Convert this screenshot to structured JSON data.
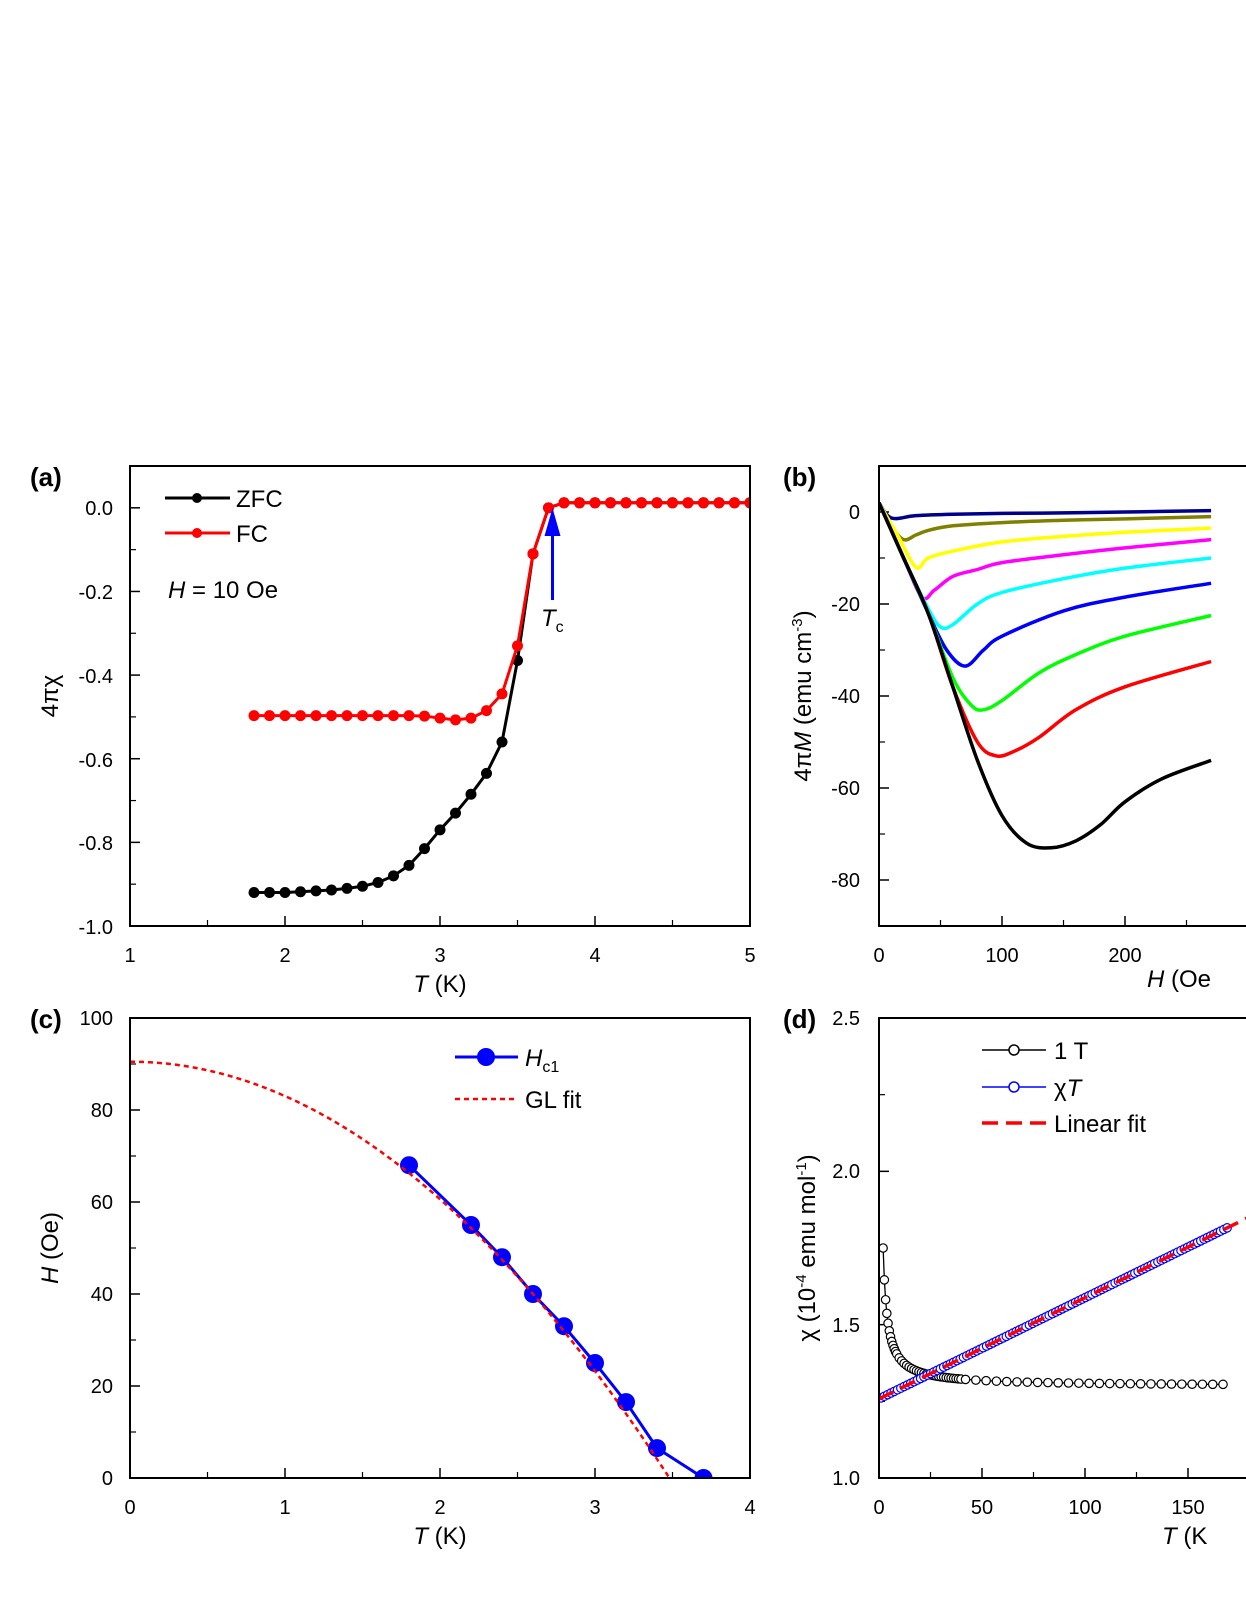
{
  "chart_data": [
    {
      "panel_label": "(a)",
      "type": "line",
      "xlabel_italic": "T",
      "xlabel_rest": " (K)",
      "ylabel": "4πχ",
      "xlim": [
        1,
        5
      ],
      "ylim": [
        -1.0,
        0.1
      ],
      "x_ticks": [
        "1",
        "2",
        "3",
        "4",
        "5"
      ],
      "y_ticks": [
        "0.0",
        "-0.2",
        "-0.4",
        "-0.6",
        "-0.8",
        "-1.0"
      ],
      "x_tick_values": [
        1,
        2,
        3,
        4,
        5
      ],
      "y_tick_values": [
        0.0,
        -0.2,
        -0.4,
        -0.6,
        -0.8,
        -1.0
      ],
      "annotation_field_italic": "H",
      "annotation_field_rest": " = 10 Oe",
      "annotation_tc_main": "T",
      "annotation_tc_sub": "c",
      "tc_x": 3.7,
      "series": [
        {
          "name": "ZFC",
          "color": "#000000",
          "x": [
            1.8,
            1.9,
            2.0,
            2.1,
            2.2,
            2.3,
            2.4,
            2.5,
            2.6,
            2.7,
            2.8,
            2.9,
            3.0,
            3.1,
            3.2,
            3.3,
            3.4,
            3.5,
            3.6,
            3.7,
            3.8,
            3.9,
            4.0,
            4.1,
            4.2,
            4.3,
            4.4,
            4.5,
            4.6,
            4.7,
            4.8,
            4.9,
            5.0
          ],
          "y": [
            -0.92,
            -0.92,
            -0.92,
            -0.918,
            -0.916,
            -0.914,
            -0.91,
            -0.905,
            -0.896,
            -0.88,
            -0.855,
            -0.815,
            -0.77,
            -0.73,
            -0.685,
            -0.635,
            -0.56,
            -0.365,
            -0.11,
            0.0,
            0.012,
            0.012,
            0.012,
            0.012,
            0.012,
            0.012,
            0.012,
            0.012,
            0.012,
            0.012,
            0.012,
            0.012,
            0.012
          ]
        },
        {
          "name": "FC",
          "color": "#ff0000",
          "x": [
            1.8,
            1.9,
            2.0,
            2.1,
            2.2,
            2.3,
            2.4,
            2.5,
            2.6,
            2.7,
            2.8,
            2.9,
            3.0,
            3.1,
            3.2,
            3.3,
            3.4,
            3.5,
            3.6,
            3.7,
            3.8,
            3.9,
            4.0,
            4.1,
            4.2,
            4.3,
            4.4,
            4.5,
            4.6,
            4.7,
            4.8,
            4.9,
            5.0
          ],
          "y": [
            -0.497,
            -0.497,
            -0.497,
            -0.497,
            -0.497,
            -0.497,
            -0.497,
            -0.497,
            -0.497,
            -0.497,
            -0.497,
            -0.498,
            -0.503,
            -0.507,
            -0.503,
            -0.485,
            -0.445,
            -0.33,
            -0.11,
            0.0,
            0.012,
            0.012,
            0.012,
            0.012,
            0.012,
            0.012,
            0.012,
            0.012,
            0.012,
            0.012,
            0.012,
            0.012,
            0.012
          ]
        }
      ]
    },
    {
      "panel_label": "(b)",
      "type": "line",
      "xlabel_italic": "H",
      "xlabel_rest": " (Oe",
      "ylabel_pre": "4π",
      "ylabel_italic": "M",
      "ylabel_rest": " (emu cm",
      "ylabel_sup": "-3",
      "ylabel_end": ")",
      "xlim": [
        0,
        270
      ],
      "ylim": [
        -90,
        10
      ],
      "x_ticks": [
        "0",
        "100",
        "200"
      ],
      "y_ticks": [
        "0",
        "-20",
        "-40",
        "-60",
        "-80"
      ],
      "x_tick_values": [
        0,
        100,
        200
      ],
      "y_tick_values": [
        0,
        -20,
        -40,
        -60,
        -80
      ],
      "series": [
        {
          "color": "#00008b",
          "x": [
            0,
            10,
            30,
            60,
            100,
            150,
            200,
            270
          ],
          "y": [
            2,
            -1.3,
            -0.8,
            -0.5,
            -0.3,
            -0.2,
            0,
            0.3
          ]
        },
        {
          "color": "#808000",
          "x": [
            0,
            10,
            20,
            30,
            40,
            60,
            100,
            150,
            200,
            270
          ],
          "y": [
            2,
            -3,
            -6,
            -5,
            -4,
            -3,
            -2.3,
            -1.8,
            -1.5,
            -1.0
          ]
        },
        {
          "color": "#ffff00",
          "x": [
            0,
            15,
            30,
            40,
            60,
            100,
            150,
            200,
            270
          ],
          "y": [
            2,
            -5,
            -12,
            -10,
            -8.5,
            -6.5,
            -5.3,
            -4.4,
            -3.5
          ]
        },
        {
          "color": "#ff00ff",
          "x": [
            0,
            20,
            35,
            45,
            60,
            80,
            100,
            150,
            200,
            270
          ],
          "y": [
            2,
            -10,
            -18.5,
            -17,
            -14,
            -12.5,
            -11,
            -9.3,
            -7.8,
            -6.0
          ]
        },
        {
          "color": "#00ffff",
          "x": [
            0,
            20,
            40,
            50,
            60,
            80,
            100,
            150,
            200,
            270
          ],
          "y": [
            2,
            -10,
            -21,
            -25,
            -24.5,
            -20,
            -17.5,
            -14.5,
            -12.2,
            -10.0
          ]
        },
        {
          "color": "#0000ff",
          "x": [
            0,
            20,
            40,
            55,
            70,
            85,
            100,
            150,
            200,
            270
          ],
          "y": [
            2,
            -10,
            -22,
            -30,
            -33.5,
            -30,
            -27,
            -21.5,
            -18.5,
            -15.5
          ]
        },
        {
          "color": "#00ff00",
          "x": [
            0,
            20,
            40,
            60,
            75,
            85,
            100,
            130,
            160,
            200,
            270
          ],
          "y": [
            2,
            -10,
            -22,
            -36,
            -42,
            -43,
            -41,
            -35,
            -31,
            -27,
            -22.5
          ]
        },
        {
          "color": "#ff0000",
          "x": [
            0,
            20,
            40,
            60,
            80,
            95,
            110,
            130,
            160,
            200,
            270
          ],
          "y": [
            2,
            -10,
            -22,
            -38,
            -50,
            -53,
            -52,
            -49,
            -43,
            -38,
            -32.5
          ]
        },
        {
          "color": "#000000",
          "x": [
            0,
            20,
            40,
            60,
            80,
            100,
            120,
            140,
            160,
            180,
            200,
            230,
            270
          ],
          "y": [
            2,
            -10,
            -22,
            -38,
            -54,
            -66,
            -72,
            -73,
            -71.5,
            -68,
            -63,
            -58,
            -54
          ]
        }
      ]
    },
    {
      "panel_label": "(c)",
      "type": "line",
      "xlabel_italic": "T",
      "xlabel_rest": " (K)",
      "ylabel_italic": "H",
      "ylabel_rest": " (Oe)",
      "xlim": [
        0,
        4
      ],
      "ylim": [
        0,
        100
      ],
      "x_ticks": [
        "0",
        "1",
        "2",
        "3",
        "4"
      ],
      "y_ticks": [
        "0",
        "20",
        "40",
        "60",
        "80",
        "100"
      ],
      "x_tick_values": [
        0,
        1,
        2,
        3,
        4
      ],
      "y_tick_values": [
        0,
        20,
        40,
        60,
        80,
        100
      ],
      "series": [
        {
          "name_italic": "H",
          "name_sub": "c1",
          "color": "#0000ff",
          "x": [
            1.8,
            2.2,
            2.4,
            2.6,
            2.8,
            3.0,
            3.2,
            3.4,
            3.7
          ],
          "y": [
            68,
            55,
            48,
            40,
            33,
            25,
            16.5,
            6.5,
            0
          ]
        },
        {
          "name": "GL fit",
          "color": "#ff0000",
          "h0": 90.5,
          "tc": 3.48
        }
      ]
    },
    {
      "panel_label": "(d)",
      "type": "scatter",
      "xlabel_italic": "T",
      "xlabel_rest": " (K",
      "ylabel_pre": "χ (10",
      "ylabel_sup": "-4",
      "ylabel_rest": " emu mol",
      "ylabel_sup2": "-1",
      "ylabel_end": ")",
      "xlim": [
        0,
        162
      ],
      "ylim": [
        1.0,
        2.5
      ],
      "x_ticks": [
        "0",
        "50",
        "100",
        "150"
      ],
      "y_ticks": [
        "1.0",
        "1.5",
        "2.0",
        "2.5"
      ],
      "x_tick_values": [
        0,
        50,
        100,
        150
      ],
      "y_tick_values": [
        1.0,
        1.5,
        2.0,
        2.5
      ],
      "series": [
        {
          "name": "1 T",
          "color": "#000000",
          "curie_a": 1.3,
          "curie_c": 0.9,
          "curie_t0": 0
        },
        {
          "name_pre": "χ",
          "name_italic": "T",
          "color": "#0000ff",
          "linear_a": 1.258,
          "linear_b": 0.0033
        },
        {
          "name": "Linear fit",
          "color": "#ff0000",
          "linear_a": 1.258,
          "linear_b": 0.0033
        }
      ]
    }
  ]
}
